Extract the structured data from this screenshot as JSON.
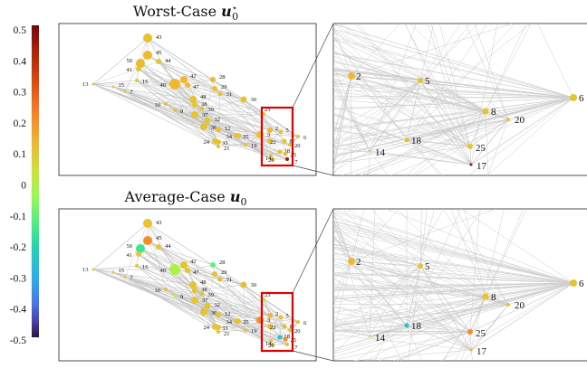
{
  "colorbar": {
    "ticks": [
      "0.5",
      "0.4",
      "0.3",
      "0.2",
      "0.1",
      "0",
      "-0.1",
      "-0.2",
      "-0.3",
      "-0.4",
      "-0.5"
    ],
    "range": [
      -0.5,
      0.5
    ]
  },
  "panels": [
    {
      "title": "Worst-Case",
      "symbol": "u",
      "subscript": "0",
      "superscript": "⋆",
      "nodes": [
        {
          "id": "43",
          "value": 0.1
        },
        {
          "id": "45",
          "value": 0.12
        },
        {
          "id": "44",
          "value": 0.1
        },
        {
          "id": "50",
          "value": 0.12
        },
        {
          "id": "41",
          "value": 0.1
        },
        {
          "id": "16",
          "value": 0.08
        },
        {
          "id": "13",
          "value": 0.1
        },
        {
          "id": "15",
          "value": 0.1
        },
        {
          "id": "7",
          "value": 0.08
        },
        {
          "id": "42",
          "value": 0.12
        },
        {
          "id": "40",
          "value": 0.12
        },
        {
          "id": "47",
          "value": 0.12
        },
        {
          "id": "28",
          "value": 0.12
        },
        {
          "id": "29",
          "value": 0.1
        },
        {
          "id": "31",
          "value": 0.1
        },
        {
          "id": "30",
          "value": 0.1
        },
        {
          "id": "48",
          "value": 0.1
        },
        {
          "id": "38",
          "value": 0.1
        },
        {
          "id": "39",
          "value": 0.1
        },
        {
          "id": "10",
          "value": 0.1
        },
        {
          "id": "9",
          "value": 0.1
        },
        {
          "id": "37",
          "value": 0.1
        },
        {
          "id": "32",
          "value": 0.1
        },
        {
          "id": "36",
          "value": 0.1
        },
        {
          "id": "12",
          "value": 0.1
        },
        {
          "id": "34",
          "value": 0.1
        },
        {
          "id": "35",
          "value": 0.1
        },
        {
          "id": "24",
          "value": 0.1
        },
        {
          "id": "33",
          "value": 0.1
        },
        {
          "id": "21",
          "value": 0.1
        },
        {
          "id": "19",
          "value": 0.1
        },
        {
          "id": "3",
          "value": 0.1
        },
        {
          "id": "23",
          "value": 0.1
        },
        {
          "id": "2",
          "value": 0.12
        },
        {
          "id": "5",
          "value": 0.1
        },
        {
          "id": "22",
          "value": 0.1
        },
        {
          "id": "8",
          "value": 0.1
        },
        {
          "id": "20",
          "value": 0.1
        },
        {
          "id": "6",
          "value": 0.1
        },
        {
          "id": "18",
          "value": 0.1
        },
        {
          "id": "14",
          "value": 0.1
        },
        {
          "id": "25",
          "value": 0.1
        },
        {
          "id": "26",
          "value": 0.1
        },
        {
          "id": "17",
          "value": 0.45
        }
      ],
      "inset_nodes": [
        {
          "id": "2",
          "value": 0.12
        },
        {
          "id": "5",
          "value": 0.1
        },
        {
          "id": "6",
          "value": 0.1
        },
        {
          "id": "8",
          "value": 0.1
        },
        {
          "id": "20",
          "value": 0.1
        },
        {
          "id": "18",
          "value": 0.1
        },
        {
          "id": "14",
          "value": 0.1
        },
        {
          "id": "25",
          "value": 0.1
        },
        {
          "id": "17",
          "value": 0.45
        }
      ]
    },
    {
      "title": "Average-Case",
      "symbol": "u",
      "subscript": "0",
      "superscript": "",
      "nodes": [
        {
          "id": "43",
          "value": 0.1
        },
        {
          "id": "45",
          "value": 0.2
        },
        {
          "id": "44",
          "value": 0.1
        },
        {
          "id": "50",
          "value": -0.15
        },
        {
          "id": "41",
          "value": 0.1
        },
        {
          "id": "16",
          "value": 0.08
        },
        {
          "id": "13",
          "value": 0.1
        },
        {
          "id": "15",
          "value": 0.1
        },
        {
          "id": "7",
          "value": 0.08
        },
        {
          "id": "42",
          "value": 0.1
        },
        {
          "id": "40",
          "value": 0.0
        },
        {
          "id": "47",
          "value": 0.1
        },
        {
          "id": "28",
          "value": -0.1
        },
        {
          "id": "29",
          "value": 0.1
        },
        {
          "id": "31",
          "value": 0.12
        },
        {
          "id": "30",
          "value": 0.1
        },
        {
          "id": "48",
          "value": 0.1
        },
        {
          "id": "38",
          "value": 0.1
        },
        {
          "id": "39",
          "value": 0.1
        },
        {
          "id": "10",
          "value": 0.1
        },
        {
          "id": "9",
          "value": 0.0
        },
        {
          "id": "37",
          "value": 0.1
        },
        {
          "id": "32",
          "value": 0.1
        },
        {
          "id": "36",
          "value": 0.1
        },
        {
          "id": "12",
          "value": 0.1
        },
        {
          "id": "34",
          "value": 0.1
        },
        {
          "id": "35",
          "value": 0.1
        },
        {
          "id": "24",
          "value": 0.1
        },
        {
          "id": "33",
          "value": 0.1
        },
        {
          "id": "21",
          "value": 0.1
        },
        {
          "id": "19",
          "value": 0.1
        },
        {
          "id": "3",
          "value": 0.2
        },
        {
          "id": "23",
          "value": 0.0
        },
        {
          "id": "2",
          "value": 0.12
        },
        {
          "id": "5",
          "value": 0.1
        },
        {
          "id": "22",
          "value": 0.1
        },
        {
          "id": "8",
          "value": 0.1
        },
        {
          "id": "20",
          "value": 0.1
        },
        {
          "id": "6",
          "value": 0.1
        },
        {
          "id": "18",
          "value": -0.25
        },
        {
          "id": "14",
          "value": 0.1
        },
        {
          "id": "25",
          "value": 0.2
        },
        {
          "id": "26",
          "value": 0.1
        },
        {
          "id": "17",
          "value": 0.1
        }
      ],
      "inset_nodes": [
        {
          "id": "2",
          "value": 0.12
        },
        {
          "id": "5",
          "value": 0.1
        },
        {
          "id": "6",
          "value": 0.1
        },
        {
          "id": "8",
          "value": 0.1
        },
        {
          "id": "20",
          "value": 0.1
        },
        {
          "id": "18",
          "value": -0.25
        },
        {
          "id": "14",
          "value": 0.1
        },
        {
          "id": "25",
          "value": 0.2
        },
        {
          "id": "17",
          "value": 0.1
        }
      ]
    }
  ]
}
